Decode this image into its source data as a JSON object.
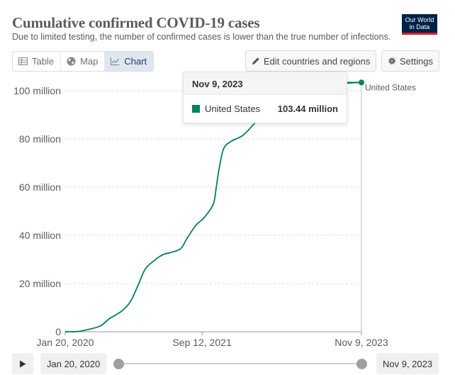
{
  "header": {
    "title": "Cumulative confirmed COVID-19 cases",
    "subtitle": "Due to limited testing, the number of confirmed cases is lower than the true number of infections.",
    "logo": "Our World in Data"
  },
  "tabs": [
    {
      "label": "Table",
      "icon": "table-icon"
    },
    {
      "label": "Map",
      "icon": "globe-icon"
    },
    {
      "label": "Chart",
      "icon": "line-chart-icon",
      "active": true
    }
  ],
  "controls": {
    "edit_label": "Edit countries and regions",
    "settings_label": "Settings"
  },
  "tooltip": {
    "date": "Nov 9, 2023",
    "series": "United States",
    "value": "103.44 million"
  },
  "timeline": {
    "start": "Jan 20, 2020",
    "end": "Nov 9, 2023"
  },
  "colors": {
    "series": "#00815f",
    "grid": "#dddddd",
    "accent_tab": "#dfe6ef"
  },
  "chart_data": {
    "type": "line",
    "title": "Cumulative confirmed COVID-19 cases",
    "xlabel": "",
    "ylabel": "",
    "ylim": [
      0,
      100
    ],
    "y_unit": "million",
    "y_ticks": [
      {
        "value": 0,
        "label": "0"
      },
      {
        "value": 20,
        "label": "20 million"
      },
      {
        "value": 40,
        "label": "40 million"
      },
      {
        "value": 60,
        "label": "60 million"
      },
      {
        "value": 80,
        "label": "80 million"
      },
      {
        "value": 100,
        "label": "100 million"
      }
    ],
    "x_ticks": [
      {
        "t": 0.0,
        "label": "Jan 20, 2020"
      },
      {
        "t": 0.462,
        "label": "Sep 12, 2021"
      },
      {
        "t": 1.0,
        "label": "Nov 9, 2023"
      }
    ],
    "legend": "right",
    "series": [
      {
        "name": "United States",
        "label": "United States",
        "points": [
          [
            0.0,
            0.0
          ],
          [
            0.04,
            0.1
          ],
          [
            0.08,
            1.0
          ],
          [
            0.12,
            2.5
          ],
          [
            0.15,
            5.5
          ],
          [
            0.19,
            8.5
          ],
          [
            0.22,
            12.5
          ],
          [
            0.245,
            19.0
          ],
          [
            0.27,
            26.0
          ],
          [
            0.3,
            29.5
          ],
          [
            0.33,
            32.0
          ],
          [
            0.36,
            33.0
          ],
          [
            0.39,
            34.5
          ],
          [
            0.41,
            38.5
          ],
          [
            0.44,
            44.0
          ],
          [
            0.47,
            47.5
          ],
          [
            0.5,
            53.0
          ],
          [
            0.51,
            60.0
          ],
          [
            0.52,
            68.0
          ],
          [
            0.535,
            76.0
          ],
          [
            0.56,
            79.0
          ],
          [
            0.6,
            81.5
          ],
          [
            0.64,
            86.5
          ],
          [
            0.68,
            91.0
          ],
          [
            0.72,
            94.5
          ],
          [
            0.76,
            97.0
          ],
          [
            0.8,
            99.5
          ],
          [
            0.84,
            101.0
          ],
          [
            0.88,
            102.0
          ],
          [
            0.92,
            102.8
          ],
          [
            0.96,
            103.2
          ],
          [
            1.0,
            103.44
          ]
        ]
      }
    ]
  }
}
